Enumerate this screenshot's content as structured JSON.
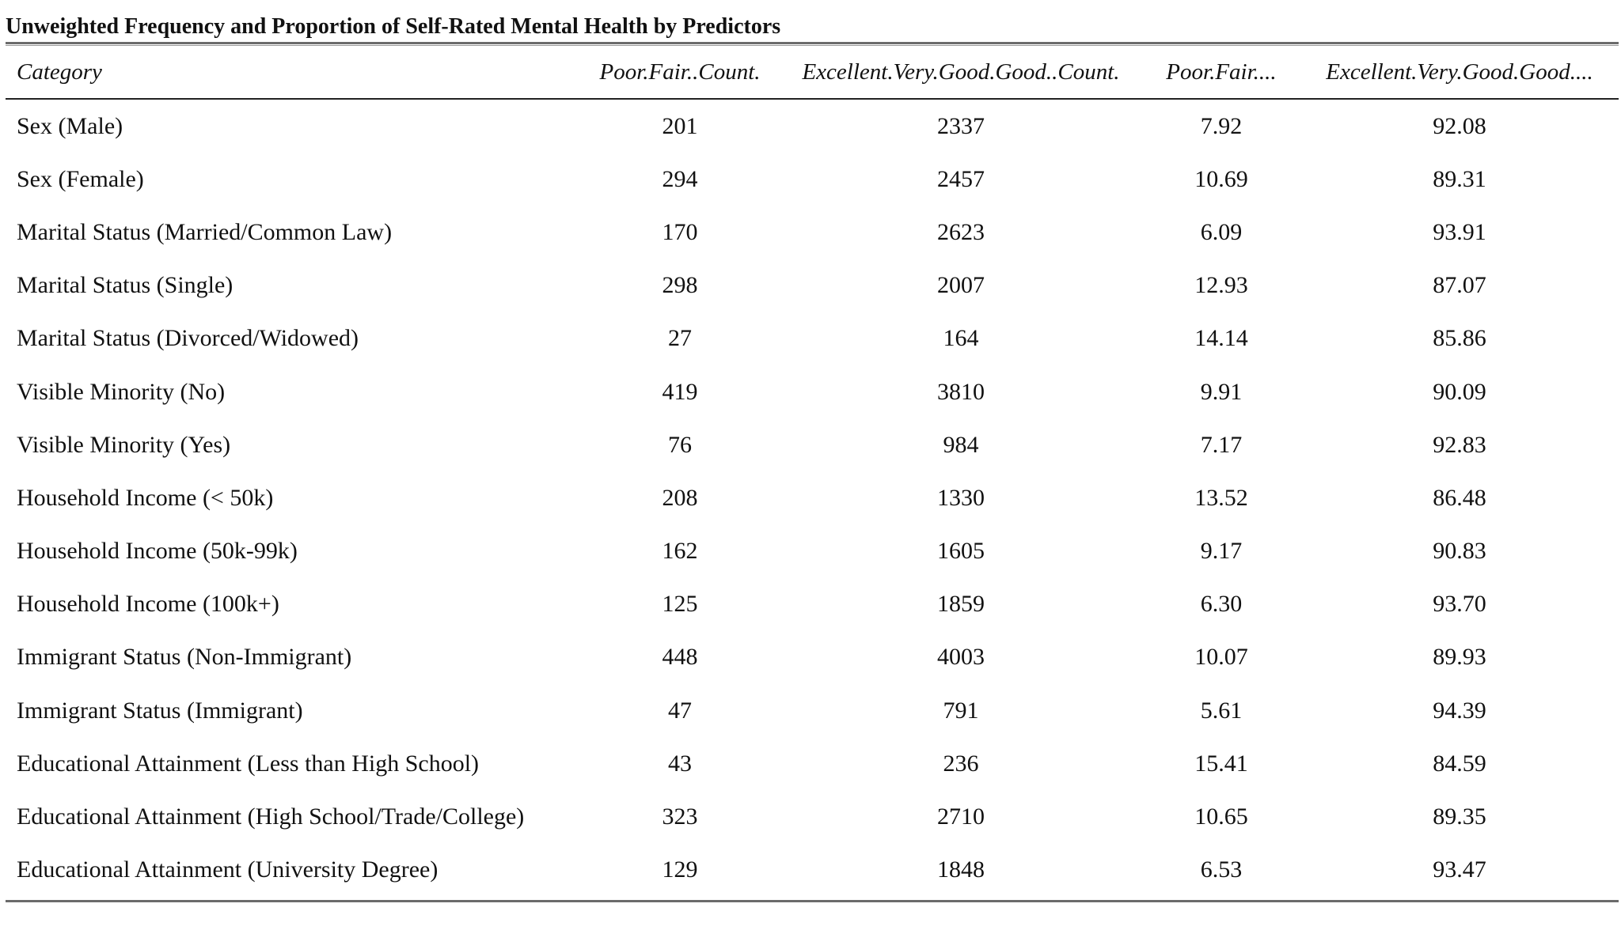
{
  "caption": "Unweighted Frequency and Proportion of Self-Rated Mental Health by Predictors",
  "columns": [
    "Category",
    "Poor.Fair..Count.",
    "Excellent.Very.Good.Good..Count.",
    "Poor.Fair....",
    "Excellent.Very.Good.Good...."
  ],
  "rows": [
    [
      "Sex (Male)",
      "201",
      "2337",
      "7.92",
      "92.08"
    ],
    [
      "Sex (Female)",
      "294",
      "2457",
      "10.69",
      "89.31"
    ],
    [
      "Marital Status (Married/Common Law)",
      "170",
      "2623",
      "6.09",
      "93.91"
    ],
    [
      "Marital Status (Single)",
      "298",
      "2007",
      "12.93",
      "87.07"
    ],
    [
      "Marital Status (Divorced/Widowed)",
      "27",
      "164",
      "14.14",
      "85.86"
    ],
    [
      "Visible Minority (No)",
      "419",
      "3810",
      "9.91",
      "90.09"
    ],
    [
      "Visible Minority (Yes)",
      "76",
      "984",
      "7.17",
      "92.83"
    ],
    [
      "Household Income (< 50k)",
      "208",
      "1330",
      "13.52",
      "86.48"
    ],
    [
      "Household Income (50k-99k)",
      "162",
      "1605",
      "9.17",
      "90.83"
    ],
    [
      "Household Income (100k+)",
      "125",
      "1859",
      "6.30",
      "93.70"
    ],
    [
      "Immigrant Status (Non-Immigrant)",
      "448",
      "4003",
      "10.07",
      "89.93"
    ],
    [
      "Immigrant Status (Immigrant)",
      "47",
      "791",
      "5.61",
      "94.39"
    ],
    [
      "Educational Attainment (Less than High School)",
      "43",
      "236",
      "15.41",
      "84.59"
    ],
    [
      "Educational Attainment (High School/Trade/College)",
      "323",
      "2710",
      "10.65",
      "89.35"
    ],
    [
      "Educational Attainment (University Degree)",
      "129",
      "1848",
      "6.53",
      "93.47"
    ]
  ]
}
